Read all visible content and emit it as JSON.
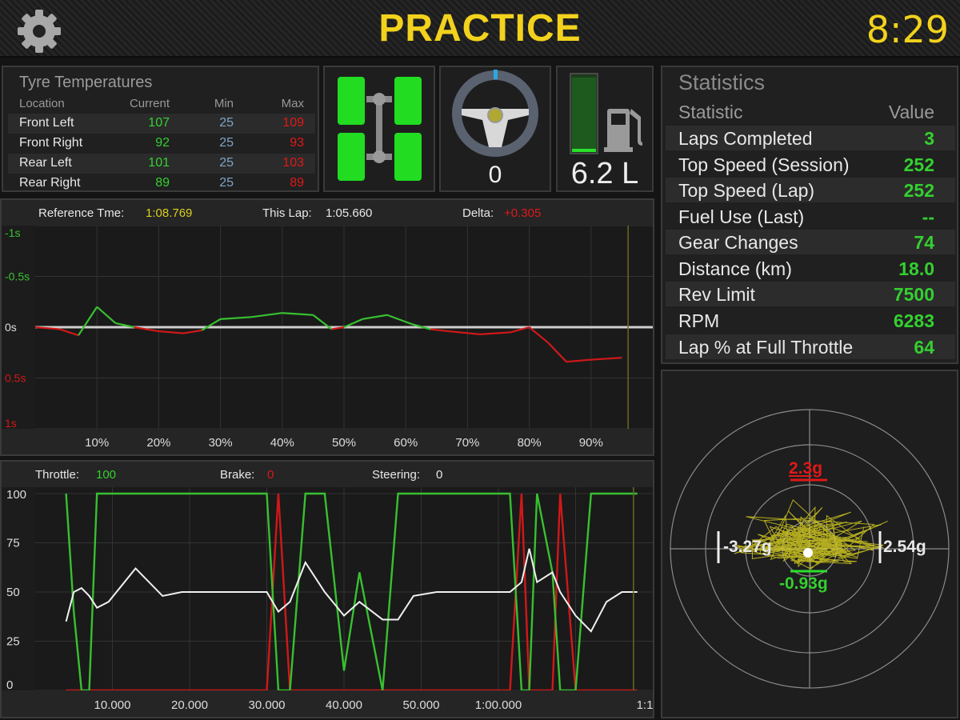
{
  "header": {
    "title": "PRACTICE",
    "clock": "8:29",
    "settings_icon": "gear-icon"
  },
  "tyre_temps": {
    "title": "Tyre Temperatures",
    "columns": [
      "Location",
      "Current",
      "Min",
      "Max"
    ],
    "rows": [
      {
        "location": "Front Left",
        "current": "107",
        "min": "25",
        "max": "109"
      },
      {
        "location": "Front Right",
        "current": "92",
        "min": "25",
        "max": "93"
      },
      {
        "location": "Rear Left",
        "current": "101",
        "min": "25",
        "max": "103"
      },
      {
        "location": "Rear Right",
        "current": "89",
        "min": "25",
        "max": "89"
      }
    ]
  },
  "widgets": {
    "chassis_icon": "car-chassis-icon",
    "steering_icon": "steering-wheel-icon",
    "steering_value": "0",
    "fuel_icon": "fuel-pump-icon",
    "fuel_value": "6.2 L",
    "fuel_level": 0.97
  },
  "statistics": {
    "title": "Statistics",
    "columns": [
      "Statistic",
      "Value"
    ],
    "rows": [
      {
        "name": "Laps Completed",
        "value": "3"
      },
      {
        "name": "Top Speed (Session)",
        "value": "252"
      },
      {
        "name": "Top Speed (Lap)",
        "value": "252"
      },
      {
        "name": "Fuel Use (Last)",
        "value": "--"
      },
      {
        "name": "Gear Changes",
        "value": "74"
      },
      {
        "name": "Distance (km)",
        "value": "18.0"
      },
      {
        "name": "Rev Limit",
        "value": "7500"
      },
      {
        "name": "RPM",
        "value": "6283"
      },
      {
        "name": "Lap % at Full Throttle",
        "value": "64"
      }
    ]
  },
  "delta_graph": {
    "reference_label": "Reference Tme:",
    "reference_value": "1:08.769",
    "this_lap_label": "This Lap:",
    "this_lap_value": "1:05.660",
    "delta_label": "Delta:",
    "delta_value": "+0.305",
    "y_ticks": [
      "-1s",
      "-0.5s",
      "0s",
      "0.5s",
      "1s"
    ],
    "x_ticks": [
      "10%",
      "20%",
      "30%",
      "40%",
      "50%",
      "60%",
      "70%",
      "80%",
      "90%"
    ]
  },
  "pedal_graph": {
    "throttle_label": "Throttle:",
    "throttle_value": "100",
    "brake_label": "Brake:",
    "brake_value": "0",
    "steering_label": "Steering:",
    "steering_value": "0",
    "y_ticks": [
      "100",
      "75",
      "50",
      "25",
      "0"
    ],
    "x_ticks": [
      "10.000",
      "20.000",
      "30.000",
      "40.000",
      "50.000",
      "1:00.000",
      "1:1"
    ]
  },
  "gforce": {
    "top": "2.3g",
    "left": "-3.27g",
    "right": "2.54g",
    "bottom": "-0.93g"
  },
  "colors": {
    "accent": "#f2d21c",
    "green": "#34d030",
    "red": "#e01818",
    "blue": "#7fa4c4",
    "trace_yellow": "#d8d020"
  },
  "chart_data": [
    {
      "type": "line",
      "name": "lap-delta",
      "x": [
        0,
        4,
        7,
        10,
        13,
        16,
        20,
        24,
        27,
        30,
        35,
        40,
        45,
        48,
        50,
        53,
        57,
        61,
        64,
        67,
        72,
        77,
        80,
        83,
        86,
        90,
        95
      ],
      "y": [
        0,
        0.02,
        0.08,
        -0.2,
        -0.04,
        0,
        0.04,
        0.06,
        0.03,
        -0.08,
        -0.1,
        -0.14,
        -0.12,
        0.02,
        0,
        -0.08,
        -0.12,
        -0.03,
        0.02,
        0.04,
        0.07,
        0.05,
        0,
        0.15,
        0.34,
        0.32,
        0.3
      ],
      "xlabel": "",
      "ylabel": "",
      "xlim": [
        0,
        100
      ],
      "ylim": [
        -1,
        1
      ],
      "grid": true
    },
    {
      "type": "line",
      "name": "pedals",
      "x": [
        4,
        5,
        6,
        7,
        8,
        9.5,
        13,
        16.5,
        19,
        23,
        28,
        30,
        31.5,
        33,
        35,
        37.5,
        40,
        42,
        45,
        47,
        49,
        52,
        55,
        58,
        61.5,
        63,
        64,
        65,
        67,
        68,
        70,
        72,
        74,
        76,
        77,
        78
      ],
      "series": [
        {
          "name": "Throttle",
          "values": [
            100,
            40,
            0,
            0,
            100,
            100,
            100,
            100,
            100,
            100,
            100,
            100,
            0,
            0,
            100,
            100,
            10,
            60,
            0,
            100,
            100,
            100,
            100,
            100,
            100,
            0,
            0,
            100,
            60,
            0,
            0,
            100,
            100,
            100,
            100,
            100
          ]
        },
        {
          "name": "Brake",
          "values": [
            0,
            0,
            0,
            0,
            0,
            0,
            0,
            0,
            0,
            0,
            0,
            0,
            100,
            0,
            0,
            0,
            0,
            0,
            0,
            0,
            0,
            0,
            0,
            0,
            0,
            100,
            0,
            0,
            0,
            100,
            0,
            0,
            0,
            0,
            0,
            0
          ]
        },
        {
          "name": "Steering",
          "values": [
            35,
            50,
            52,
            48,
            42,
            45,
            62,
            48,
            50,
            50,
            50,
            50,
            40,
            45,
            65,
            50,
            38,
            45,
            36,
            36,
            48,
            50,
            50,
            50,
            50,
            55,
            72,
            55,
            60,
            50,
            38,
            30,
            45,
            50,
            50,
            50
          ]
        }
      ],
      "xlabel": "",
      "ylabel": "",
      "ylim": [
        0,
        100
      ],
      "grid": true
    }
  ]
}
